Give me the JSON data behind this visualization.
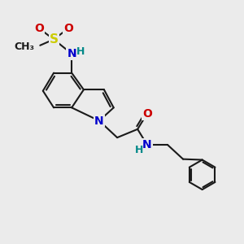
{
  "background_color": "#ebebeb",
  "bond_color": "#1a1a1a",
  "figsize": [
    3.0,
    3.0
  ],
  "dpi": 100,
  "atoms": {
    "S": {
      "color": "#cccc00",
      "fontsize": 10
    },
    "N": {
      "color": "#0000cc",
      "fontsize": 10
    },
    "O": {
      "color": "#cc0000",
      "fontsize": 10
    },
    "H": {
      "color": "#008888",
      "fontsize": 9
    },
    "C": {
      "color": "#1a1a1a",
      "fontsize": 9
    }
  }
}
